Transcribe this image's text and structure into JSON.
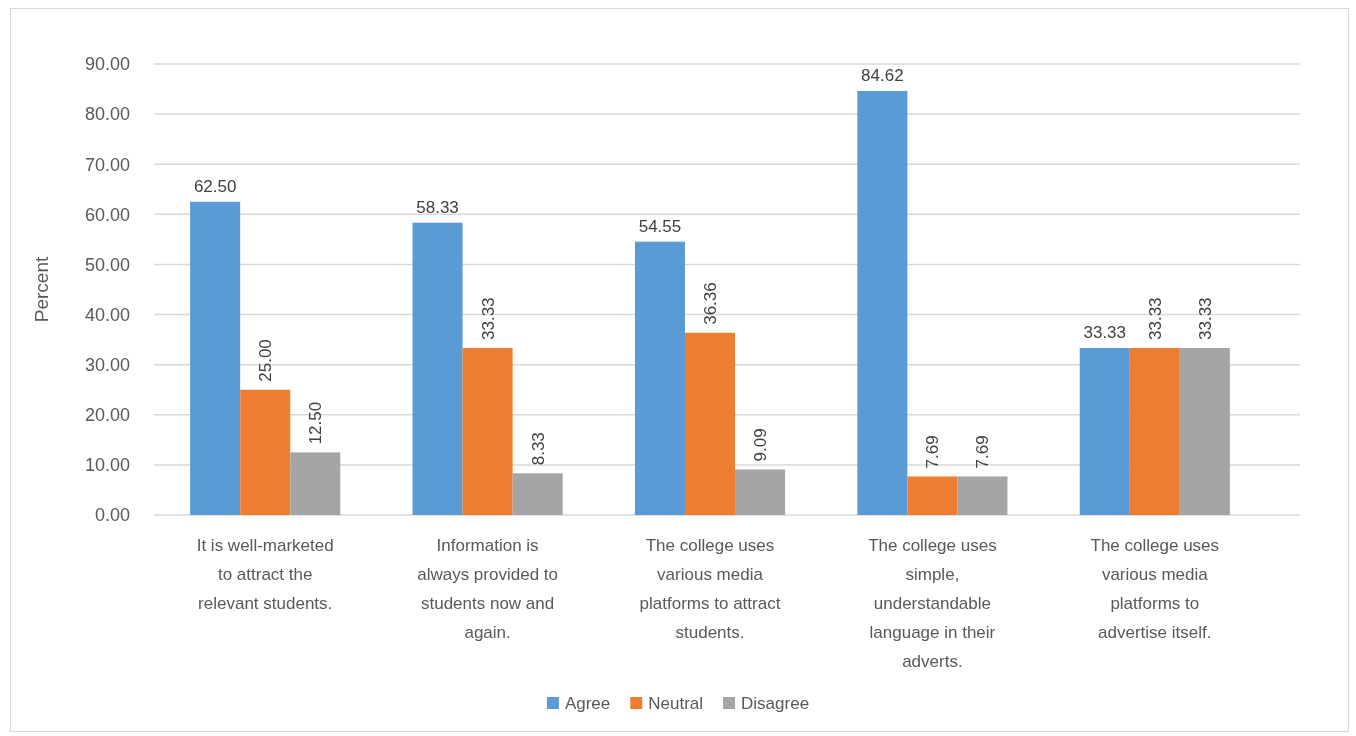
{
  "chart_data": {
    "type": "bar",
    "categories": [
      "It is well-marketed to attract the relevant students.",
      "Information is always provided to students now and again.",
      "The college uses various media platforms to attract students.",
      "The college uses simple, understandable language in their adverts.",
      "The college uses various media platforms to advertise itself."
    ],
    "series": [
      {
        "name": "Agree",
        "color": "#5b9bd5",
        "values": [
          62.5,
          58.33,
          54.55,
          84.62,
          33.33
        ],
        "value_labels": [
          "62.50",
          "58.33",
          "54.55",
          "84.62",
          "33.33"
        ]
      },
      {
        "name": "Neutral",
        "color": "#ed7d31",
        "values": [
          25.0,
          33.33,
          36.36,
          7.69,
          33.33
        ],
        "value_labels": [
          "25.00",
          "33.33",
          "36.36",
          "7.69",
          "33.33"
        ]
      },
      {
        "name": "Disagree",
        "color": "#a5a5a5",
        "values": [
          12.5,
          8.33,
          9.09,
          7.69,
          33.33
        ],
        "value_labels": [
          "12.50",
          "8.33",
          "9.09",
          "7.69",
          "33.33"
        ]
      }
    ],
    "ylabel": "Percent",
    "ylim": [
      0,
      90
    ],
    "yticks": [
      {
        "value": 0,
        "label": "0.00"
      },
      {
        "value": 10,
        "label": "10.00"
      },
      {
        "value": 20,
        "label": "20.00"
      },
      {
        "value": 30,
        "label": "30.00"
      },
      {
        "value": 40,
        "label": "40.00"
      },
      {
        "value": 50,
        "label": "50.00"
      },
      {
        "value": 60,
        "label": "60.00"
      },
      {
        "value": 70,
        "label": "70.00"
      },
      {
        "value": 80,
        "label": "80.00"
      },
      {
        "value": 90,
        "label": "90.00"
      }
    ],
    "grid": true,
    "legend": "bottom"
  }
}
